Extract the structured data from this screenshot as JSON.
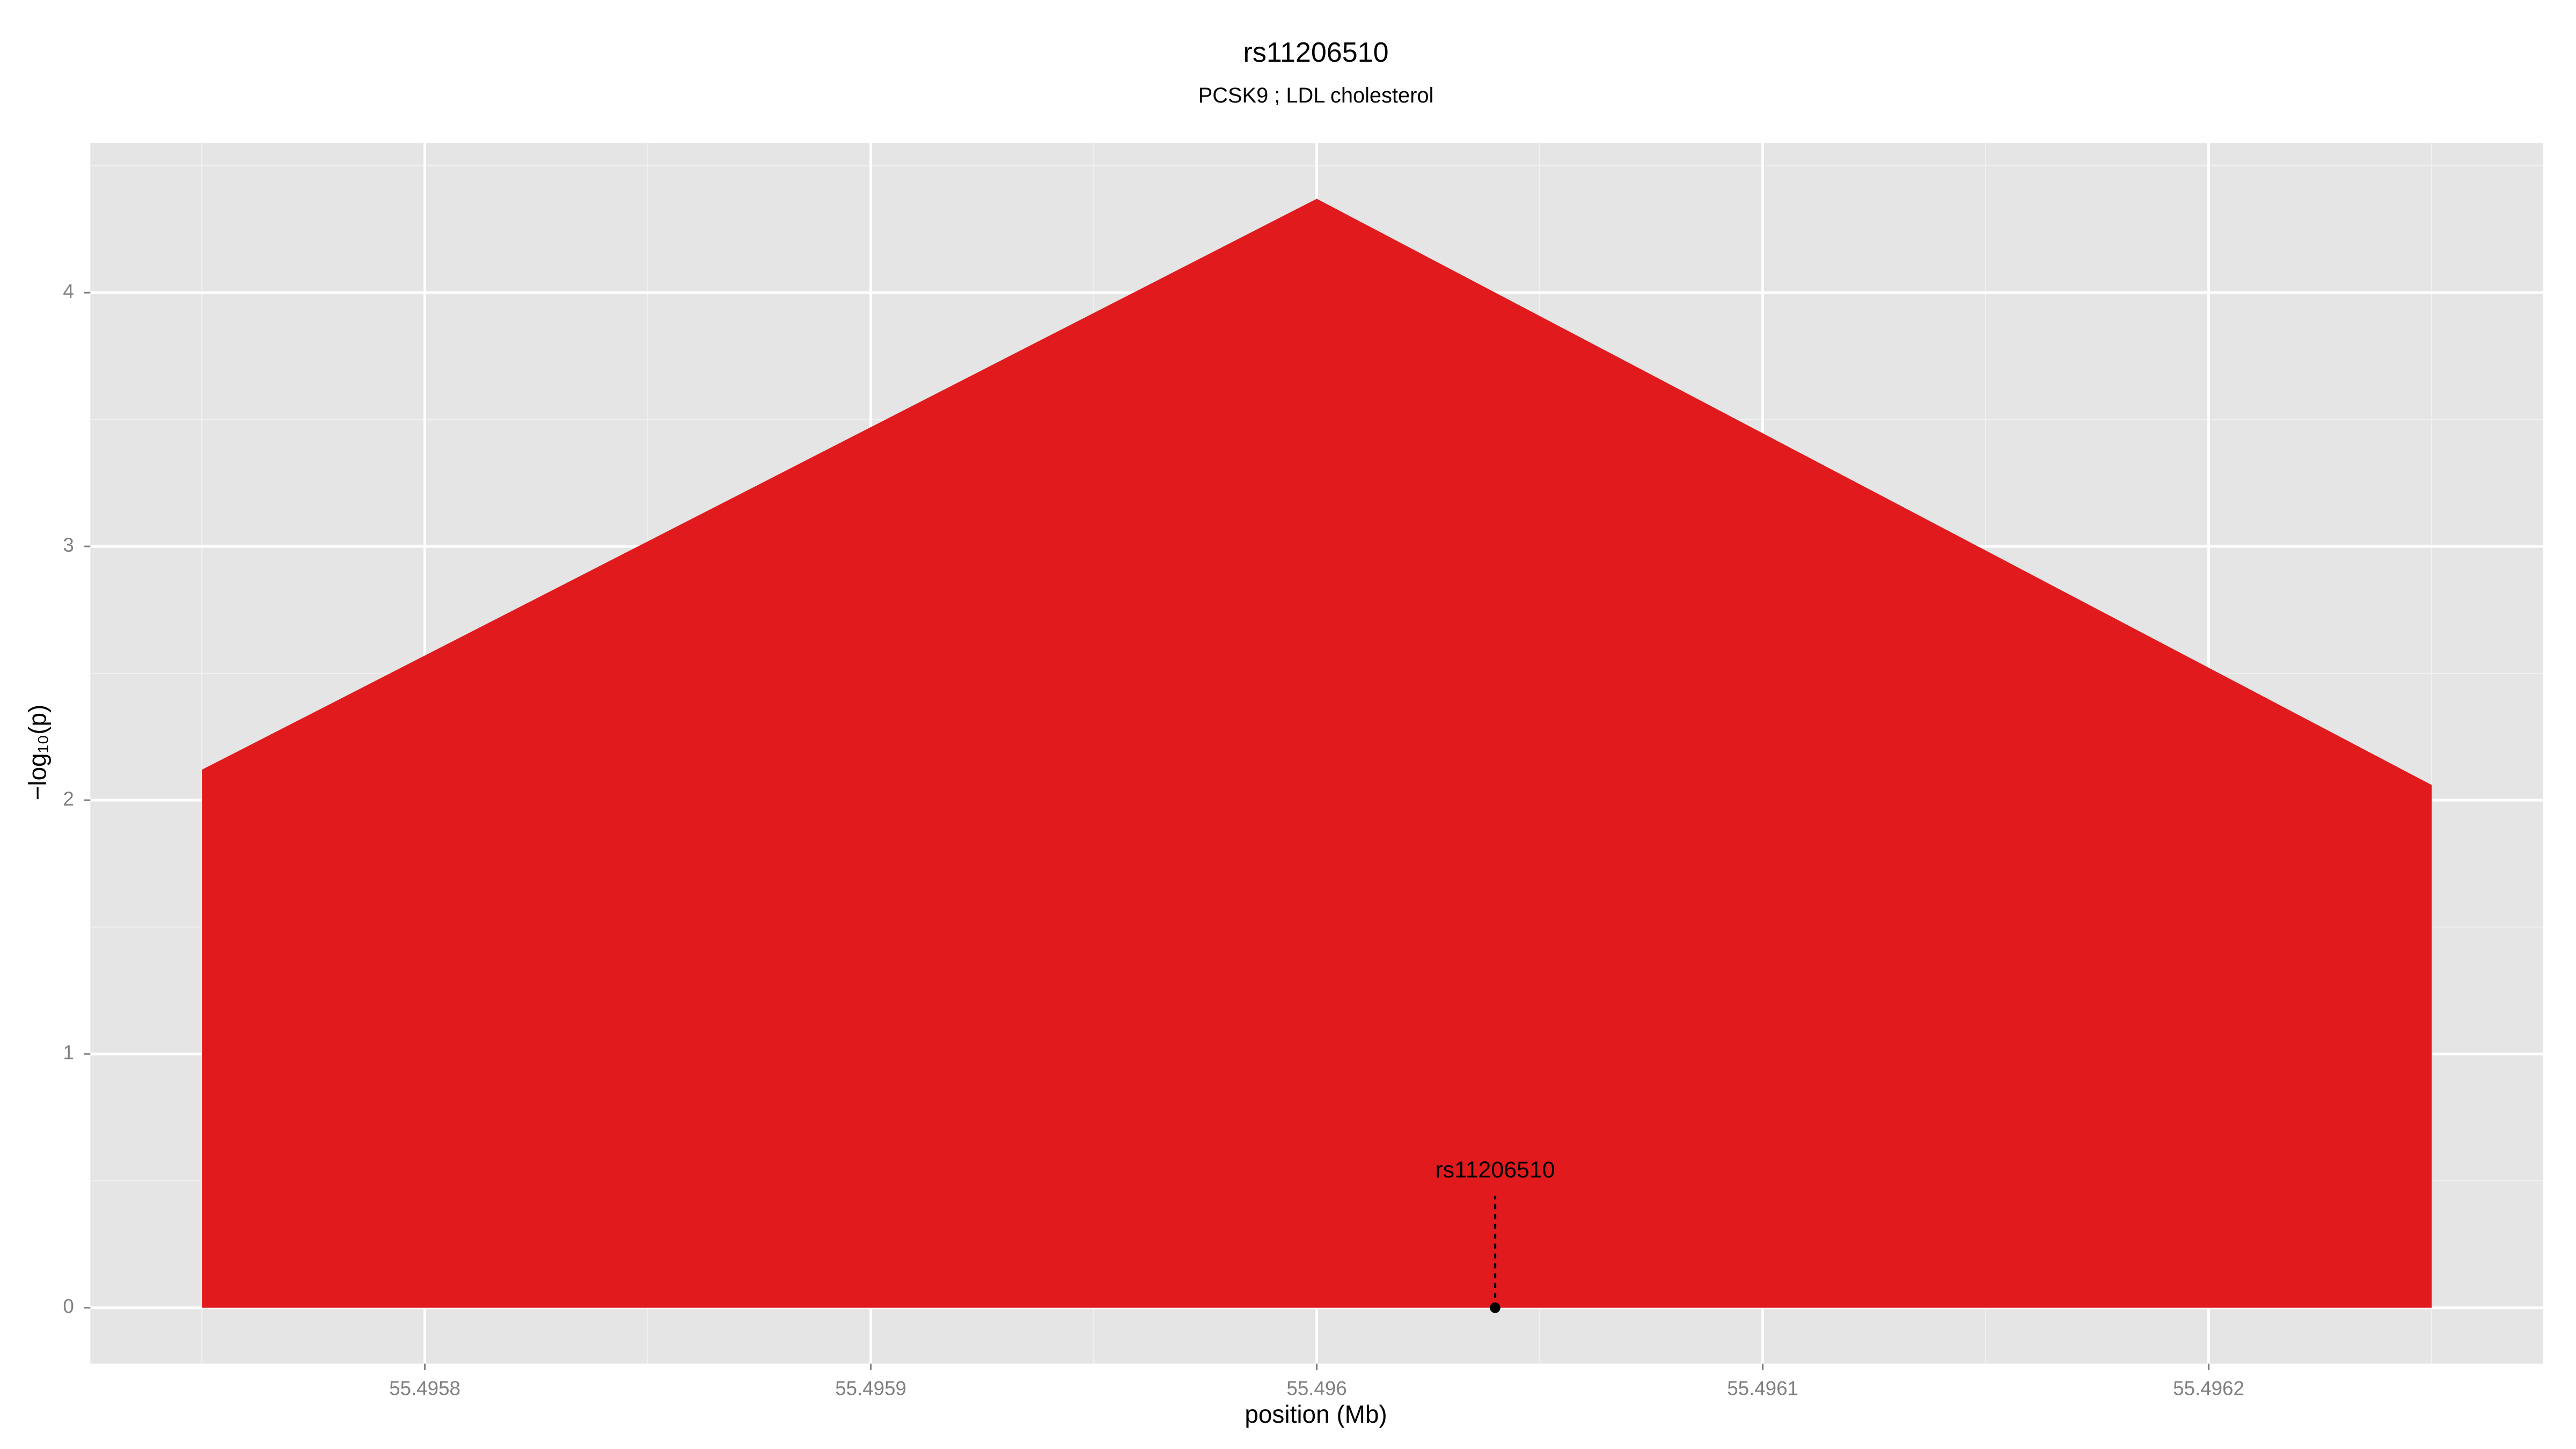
{
  "chart_data": {
    "type": "area",
    "title": "rs11206510",
    "subtitle": "PCSK9 ; LDL cholesterol",
    "xlabel": "position (Mb)",
    "ylabel": "−log₁₀(p)",
    "x": [
      55.49575,
      55.496,
      55.49625
    ],
    "values": [
      2.12,
      4.37,
      2.06
    ],
    "color": "#e11b1d",
    "xlim": [
      55.495725,
      55.496275
    ],
    "ylim": [
      -0.22,
      4.59
    ],
    "xticks": [
      55.4958,
      55.4959,
      55.496,
      55.4961,
      55.4962
    ],
    "yticks": [
      0,
      1,
      2,
      3,
      4
    ],
    "grid": true,
    "annotation": {
      "label": "rs11206510",
      "x": 55.49604,
      "y": 0
    }
  }
}
